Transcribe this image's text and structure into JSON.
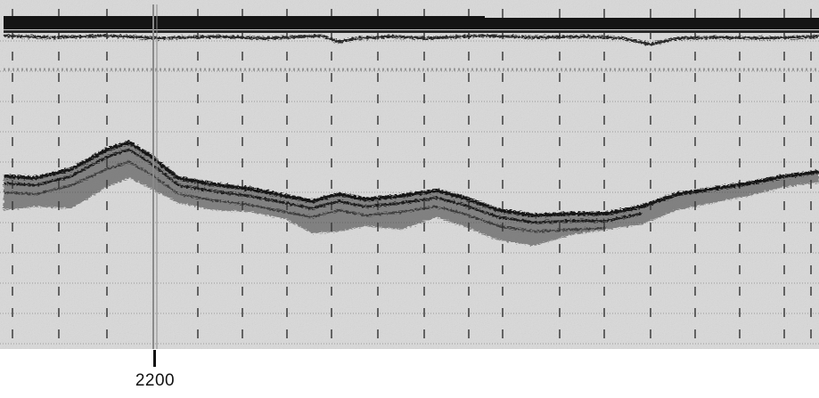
{
  "figure": {
    "type": "seismic-reflection-profile",
    "time_marker_label": "2200",
    "colors": {
      "paper": "#d9d9d9",
      "ink": "#141414",
      "grid": "#6a6a6a",
      "marker_line": "#8a8a8a"
    }
  }
}
